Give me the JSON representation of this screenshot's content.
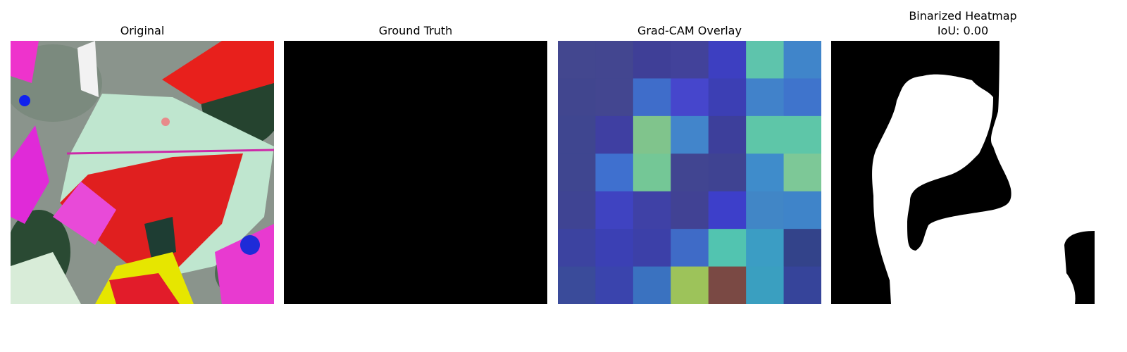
{
  "panels": {
    "original": {
      "title": "Original"
    },
    "ground_truth": {
      "title": "Ground Truth"
    },
    "gradcam": {
      "title": "Grad-CAM Overlay"
    },
    "binarized": {
      "title": "Binarized Heatmap",
      "subtitle": "IoU: 0.00"
    }
  },
  "chart_data": [
    {
      "type": "image",
      "title": "Original",
      "content": "color-inverted leaf photograph"
    },
    {
      "type": "image",
      "title": "Ground Truth",
      "mask": "all zeros (black)"
    },
    {
      "type": "heatmap",
      "title": "Grad-CAM Overlay",
      "rows": 7,
      "cols": 7,
      "colors": [
        [
          "#43478f",
          "#434690",
          "#3f3f97",
          "#42429a",
          "#3d3fc1",
          "#5ec4ac",
          "#4085ca"
        ],
        [
          "#41468f",
          "#434690",
          "#3f6dca",
          "#4646cc",
          "#3c3fb4",
          "#4182ca",
          "#3f74cc"
        ],
        [
          "#3f4690",
          "#3f3fa2",
          "#80c48c",
          "#4285cb",
          "#3d3f9b",
          "#5ec6a8",
          "#5ec6a8"
        ],
        [
          "#3f4690",
          "#3f70cf",
          "#74c796",
          "#414591",
          "#3f4392",
          "#3f8ccb",
          "#7dc897"
        ],
        [
          "#3f4493",
          "#3f43c1",
          "#3f41a6",
          "#414294",
          "#3d3fca",
          "#4186c6",
          "#3f84c9"
        ],
        [
          "#3c43a0",
          "#3b40b4",
          "#3c40a8",
          "#3f6bc7",
          "#52c4b0",
          "#3b9dc4",
          "#33438a"
        ],
        [
          "#3a4b9a",
          "#3a44ad",
          "#3a72c0",
          "#9dc35a",
          "#7a4944",
          "#3a9fc0",
          "#36449a"
        ]
      ]
    },
    {
      "type": "image",
      "title": "Binarized Heatmap",
      "subtitle": "IoU: 0.00",
      "iou": 0.0,
      "colors": {
        "foreground": "#ffffff",
        "background": "#000000"
      }
    }
  ]
}
